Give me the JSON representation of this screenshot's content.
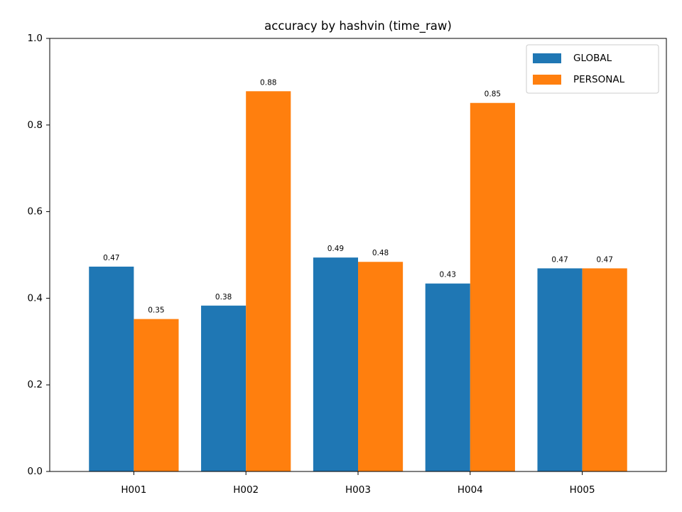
{
  "chart_data": {
    "type": "bar",
    "title": "accuracy by hashvin (time_raw)",
    "xlabel": "",
    "ylabel": "",
    "categories": [
      "H001",
      "H002",
      "H003",
      "H004",
      "H005"
    ],
    "series": [
      {
        "name": "GLOBAL",
        "color": "#1f77b4",
        "values": [
          0.473,
          0.383,
          0.494,
          0.434,
          0.469
        ],
        "labels": [
          "0.47",
          "0.38",
          "0.49",
          "0.43",
          "0.47"
        ]
      },
      {
        "name": "PERSONAL",
        "color": "#ff7f0e",
        "values": [
          0.352,
          0.878,
          0.484,
          0.851,
          0.469
        ],
        "labels": [
          "0.35",
          "0.88",
          "0.48",
          "0.85",
          "0.47"
        ]
      }
    ],
    "ylim": [
      0.0,
      1.0
    ],
    "yticks": [
      0.0,
      0.2,
      0.4,
      0.6,
      0.8,
      1.0
    ],
    "ytick_labels": [
      "0.0",
      "0.2",
      "0.4",
      "0.6",
      "0.8",
      "1.0"
    ],
    "grid": false,
    "legend_position": "upper right"
  }
}
